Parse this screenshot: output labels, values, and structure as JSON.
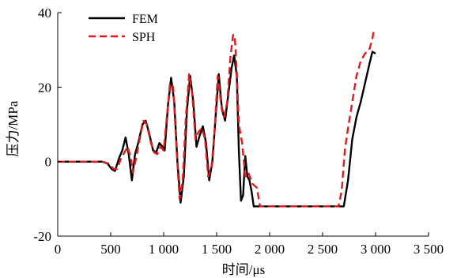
{
  "chart_data": {
    "type": "line",
    "xlabel": "时间/μs",
    "ylabel": "压力/MPa",
    "xlim": [
      0,
      3500
    ],
    "ylim": [
      -20,
      40
    ],
    "x_ticks": [
      0,
      500,
      1000,
      1500,
      2000,
      2500,
      3000,
      3500
    ],
    "x_tick_labels": [
      "0",
      "500",
      "1 000",
      "1 500",
      "2 000",
      "2 500",
      "3 000",
      "3 500"
    ],
    "y_ticks": [
      -20,
      0,
      20,
      40
    ],
    "y_tick_labels": [
      "-20",
      "0",
      "20",
      "40"
    ],
    "grid": false,
    "legend_position": "top-left",
    "series": [
      {
        "name": "FEM",
        "color": "#000000",
        "style": "solid",
        "points": [
          [
            0,
            0
          ],
          [
            420,
            0
          ],
          [
            470,
            -0.5
          ],
          [
            510,
            -2
          ],
          [
            540,
            -2.5
          ],
          [
            580,
            1
          ],
          [
            610,
            3
          ],
          [
            640,
            6.5
          ],
          [
            670,
            2
          ],
          [
            700,
            -5
          ],
          [
            730,
            2
          ],
          [
            760,
            5
          ],
          [
            800,
            10
          ],
          [
            830,
            11
          ],
          [
            860,
            8
          ],
          [
            900,
            3
          ],
          [
            930,
            2.5
          ],
          [
            960,
            5
          ],
          [
            990,
            4
          ],
          [
            1010,
            3
          ],
          [
            1040,
            15
          ],
          [
            1070,
            22.5
          ],
          [
            1100,
            16
          ],
          [
            1130,
            0
          ],
          [
            1160,
            -11
          ],
          [
            1190,
            -4
          ],
          [
            1220,
            14
          ],
          [
            1250,
            23
          ],
          [
            1280,
            16
          ],
          [
            1310,
            4
          ],
          [
            1340,
            7
          ],
          [
            1370,
            9.5
          ],
          [
            1400,
            5
          ],
          [
            1430,
            -5
          ],
          [
            1460,
            0
          ],
          [
            1490,
            12
          ],
          [
            1520,
            23.5
          ],
          [
            1550,
            14
          ],
          [
            1580,
            11
          ],
          [
            1610,
            18
          ],
          [
            1640,
            25
          ],
          [
            1665,
            28.5
          ],
          [
            1690,
            23
          ],
          [
            1710,
            3
          ],
          [
            1730,
            -10.5
          ],
          [
            1750,
            -9
          ],
          [
            1770,
            1.5
          ],
          [
            1790,
            -4
          ],
          [
            1810,
            -5
          ],
          [
            1830,
            -8
          ],
          [
            1850,
            -12
          ],
          [
            2700,
            -12
          ],
          [
            2740,
            -5
          ],
          [
            2780,
            6
          ],
          [
            2820,
            12
          ],
          [
            2860,
            16
          ],
          [
            2900,
            21
          ],
          [
            2940,
            26
          ],
          [
            2970,
            29.5
          ],
          [
            3000,
            29
          ]
        ]
      },
      {
        "name": "SPH",
        "color": "#e31a1c",
        "style": "dashed",
        "points": [
          [
            0,
            0
          ],
          [
            420,
            0
          ],
          [
            480,
            -0.5
          ],
          [
            530,
            -2
          ],
          [
            560,
            -2
          ],
          [
            600,
            1
          ],
          [
            640,
            3
          ],
          [
            660,
            4
          ],
          [
            690,
            1
          ],
          [
            710,
            -3
          ],
          [
            740,
            1
          ],
          [
            780,
            7
          ],
          [
            810,
            11
          ],
          [
            840,
            10
          ],
          [
            880,
            5
          ],
          [
            910,
            2.5
          ],
          [
            940,
            2
          ],
          [
            970,
            4
          ],
          [
            1000,
            3
          ],
          [
            1030,
            12
          ],
          [
            1060,
            21
          ],
          [
            1090,
            20
          ],
          [
            1120,
            4
          ],
          [
            1150,
            -10
          ],
          [
            1180,
            -5
          ],
          [
            1210,
            12
          ],
          [
            1240,
            23.5
          ],
          [
            1270,
            18
          ],
          [
            1300,
            6
          ],
          [
            1330,
            8
          ],
          [
            1360,
            9
          ],
          [
            1390,
            6
          ],
          [
            1420,
            -4
          ],
          [
            1450,
            -2
          ],
          [
            1480,
            8
          ],
          [
            1510,
            23
          ],
          [
            1540,
            16
          ],
          [
            1570,
            12
          ],
          [
            1600,
            16
          ],
          [
            1630,
            28
          ],
          [
            1655,
            34
          ],
          [
            1670,
            34
          ],
          [
            1690,
            24
          ],
          [
            1710,
            10
          ],
          [
            1740,
            5
          ],
          [
            1770,
            -4
          ],
          [
            1800,
            -3
          ],
          [
            1840,
            -6
          ],
          [
            1880,
            -7
          ],
          [
            1910,
            -12
          ],
          [
            2650,
            -12
          ],
          [
            2680,
            -8
          ],
          [
            2710,
            3
          ],
          [
            2740,
            9
          ],
          [
            2780,
            16
          ],
          [
            2820,
            23
          ],
          [
            2860,
            27
          ],
          [
            2900,
            29
          ],
          [
            2940,
            30
          ],
          [
            2970,
            33
          ],
          [
            2985,
            35.5
          ]
        ]
      }
    ]
  }
}
